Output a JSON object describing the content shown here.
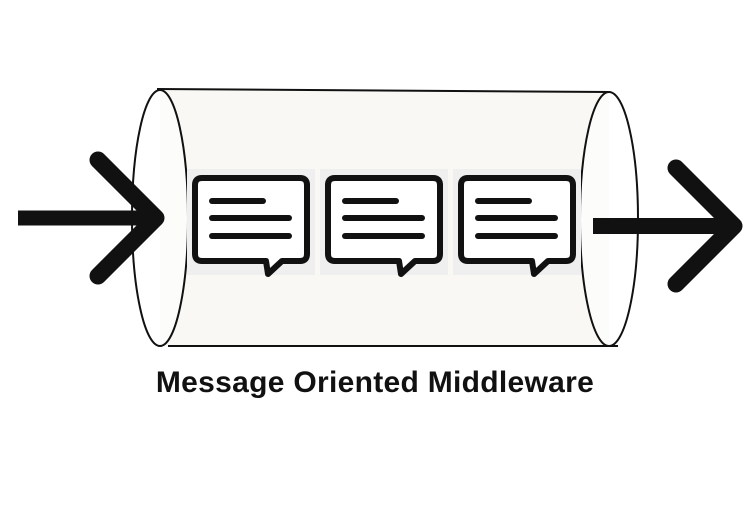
{
  "diagram": {
    "title": "Message Oriented Middleware",
    "queue": {
      "messages": [
        {
          "icon": "message-bubble-icon"
        },
        {
          "icon": "message-bubble-icon"
        },
        {
          "icon": "message-bubble-icon"
        }
      ]
    },
    "input_arrow": {
      "icon": "arrow-right-icon",
      "direction": "in"
    },
    "output_arrow": {
      "icon": "arrow-right-icon",
      "direction": "out"
    },
    "colors": {
      "stroke": "#111111",
      "tube_fill": "#f9f8f4",
      "message_bg": "#efefef",
      "background": "#ffffff"
    }
  }
}
